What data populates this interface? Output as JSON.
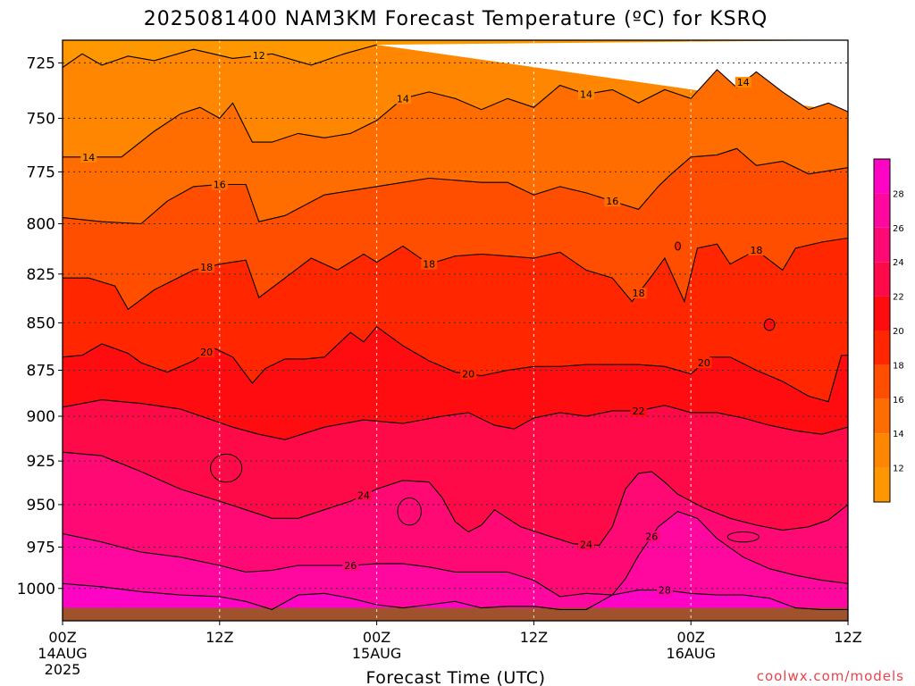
{
  "chart_data": {
    "type": "heatmap",
    "title": "2025081400 NAM3KM Forecast Temperature (ºC) for KSRQ",
    "xlabel": "Forecast Time (UTC)",
    "ylabel": "",
    "credit": "coolwx.com/models",
    "x_ticks": [
      {
        "hour": 0,
        "label": "00Z",
        "sub1": "14AUG",
        "sub2": "2025"
      },
      {
        "hour": 12,
        "label": "12Z",
        "sub1": "",
        "sub2": ""
      },
      {
        "hour": 24,
        "label": "00Z",
        "sub1": "15AUG",
        "sub2": ""
      },
      {
        "hour": 36,
        "label": "12Z",
        "sub1": "",
        "sub2": ""
      },
      {
        "hour": 48,
        "label": "00Z",
        "sub1": "16AUG",
        "sub2": ""
      },
      {
        "hour": 60,
        "label": "12Z",
        "sub1": "",
        "sub2": ""
      }
    ],
    "xlim": [
      0,
      60
    ],
    "y_ticks": [
      725,
      750,
      775,
      800,
      825,
      850,
      875,
      900,
      925,
      950,
      975,
      1000
    ],
    "ylim": [
      1020,
      715
    ],
    "y_scale": "pressure (hPa), inverted",
    "ground_level_hPa": 1012,
    "grid": true,
    "colorbar": {
      "levels": [
        12,
        14,
        16,
        18,
        20,
        22,
        24,
        26,
        28
      ],
      "colors": [
        "#ff9800",
        "#ff8600",
        "#ff6c00",
        "#ff4e00",
        "#ff2600",
        "#ff0c10",
        "#ff0a48",
        "#ff0a74",
        "#ff08a0",
        "#ff04c4"
      ]
    },
    "isotherms": [
      {
        "value": 12,
        "x": [
          0,
          1.5,
          3,
          5,
          7,
          10,
          13,
          16,
          19,
          21.5,
          24
        ],
        "p": [
          727,
          721,
          726,
          722,
          724,
          719,
          723,
          721,
          726,
          721,
          717
        ],
        "labels": [
          15
        ]
      },
      {
        "value": 14,
        "x": [
          0,
          2,
          4.5,
          7,
          9,
          10.5,
          12,
          13,
          14.5,
          16,
          18,
          20,
          22,
          24,
          26,
          28,
          30,
          32,
          34,
          36,
          38,
          40,
          42,
          44,
          46,
          48,
          50,
          51.5,
          53,
          55,
          57,
          58.5,
          60
        ],
        "p": [
          768,
          768,
          768,
          756,
          748,
          745,
          750,
          743,
          761,
          761,
          757,
          759,
          757,
          751,
          741,
          738,
          741,
          746,
          741,
          745,
          735,
          739,
          737,
          743,
          737,
          741,
          728,
          736,
          729,
          738,
          746,
          743,
          747
        ],
        "labels": [
          2,
          26,
          40,
          52
        ]
      },
      {
        "value": 16,
        "x": [
          0,
          3,
          6,
          8,
          10,
          12,
          14,
          15,
          17,
          20,
          23,
          26,
          28,
          30,
          32,
          34,
          36,
          38,
          40,
          42,
          44,
          45.5,
          46.5,
          48,
          50,
          51.5,
          53,
          55,
          57,
          60
        ],
        "p": [
          797,
          799,
          800,
          789,
          782,
          781,
          781,
          799,
          796,
          786,
          783,
          780,
          778,
          779,
          780,
          780,
          786,
          782,
          785,
          789,
          793,
          782,
          776,
          768,
          767,
          764,
          772,
          770,
          776,
          773
        ],
        "labels": [
          12,
          42
        ]
      },
      {
        "value": 18,
        "x": [
          0,
          2,
          4,
          5,
          7,
          10,
          12,
          14,
          15,
          17,
          19,
          21,
          23,
          24,
          26,
          28,
          30,
          32,
          34,
          36,
          38,
          40,
          42,
          43.5,
          45,
          46,
          47.5,
          48.5,
          50,
          51,
          53,
          55,
          56,
          58,
          60
        ],
        "p": [
          827,
          827,
          831,
          843,
          833,
          823,
          820,
          818,
          837,
          827,
          817,
          823,
          815,
          819,
          811,
          820,
          816,
          815,
          816,
          817,
          814,
          823,
          827,
          839,
          826,
          817,
          839,
          812,
          810,
          820,
          813,
          823,
          812,
          809,
          807
        ],
        "labels": [
          11,
          28,
          44,
          53
        ]
      },
      {
        "value": 20,
        "x": [
          0,
          1.5,
          3,
          5,
          6,
          8,
          10,
          11.5,
          13,
          14.5,
          15.5,
          17,
          18.5,
          20,
          22,
          23,
          24,
          26,
          28,
          30,
          32,
          34,
          36,
          38,
          40,
          42,
          44,
          46,
          48,
          49.5,
          51,
          53,
          55,
          57,
          58.5,
          59.5,
          60
        ],
        "p": [
          868,
          867,
          861,
          866,
          871,
          876,
          870,
          863,
          868,
          882,
          874,
          869,
          869,
          868,
          855,
          860,
          852,
          862,
          870,
          876,
          878,
          875,
          873,
          873,
          872,
          872,
          872,
          873,
          877,
          868,
          868,
          875,
          881,
          889,
          892,
          867,
          867
        ],
        "labels": [
          11,
          31,
          49
        ]
      },
      {
        "value": 22,
        "x": [
          0,
          3,
          6,
          9,
          11,
          13,
          15,
          17,
          20,
          23,
          26,
          29,
          31,
          33,
          34.5,
          36,
          38,
          40,
          42,
          44,
          46,
          48,
          50,
          52,
          54,
          56,
          58,
          60
        ],
        "p": [
          895,
          891,
          893,
          896,
          901,
          906,
          910,
          913,
          906,
          902,
          904,
          900,
          898,
          905,
          907,
          901,
          898,
          900,
          897,
          897,
          894,
          898,
          898,
          901,
          905,
          908,
          910,
          906
        ],
        "labels": [
          44
        ]
      },
      {
        "value": 24,
        "x": [
          0,
          3,
          6,
          9,
          12,
          14,
          16,
          18,
          20,
          22,
          24,
          26,
          28,
          29,
          30,
          31,
          32,
          33,
          34,
          35,
          37,
          39,
          41,
          42,
          43,
          44,
          45,
          46,
          47,
          49,
          51,
          53,
          55,
          57,
          58.5,
          60
        ],
        "p": [
          920,
          922,
          931,
          941,
          948,
          953,
          958,
          958,
          953,
          948,
          941,
          936,
          937,
          946,
          960,
          966,
          962,
          953,
          958,
          963,
          968,
          973,
          974,
          963,
          941,
          932,
          931,
          937,
          944,
          952,
          958,
          962,
          965,
          963,
          959,
          950
        ],
        "labels": [
          23,
          40
        ]
      },
      {
        "value": 26,
        "x": [
          0,
          3,
          6,
          9,
          12,
          14,
          16,
          18,
          20,
          22,
          24,
          26,
          28,
          30,
          32,
          34,
          36,
          38,
          40,
          42,
          43,
          44,
          45.5,
          47,
          48.5,
          50,
          52,
          54,
          56,
          58,
          60
        ],
        "p": [
          967,
          972,
          978,
          981,
          986,
          990,
          989,
          986,
          986,
          986,
          985,
          985,
          987,
          990,
          990,
          990,
          995,
          1005,
          1003,
          1004,
          994,
          980,
          963,
          954,
          958,
          970,
          981,
          988,
          992,
          995,
          997
        ],
        "labels": [
          22,
          45
        ]
      },
      {
        "value": 28,
        "x": [
          0,
          3,
          6,
          9,
          12,
          14,
          16,
          18,
          20,
          22,
          24,
          26,
          28,
          30,
          32,
          34,
          36,
          38,
          40,
          42,
          44,
          46,
          48,
          50,
          52,
          54,
          56,
          58,
          60
        ],
        "p": [
          997,
          999,
          1002,
          1004,
          1005,
          1008,
          1013,
          1004,
          1003,
          1006,
          1010,
          1012,
          1010,
          1008,
          1012,
          1011,
          1011,
          1013,
          1013,
          1004,
          1001,
          1001,
          1003,
          1004,
          1004,
          1006,
          1012,
          1013,
          1013
        ],
        "labels": [
          46
        ]
      }
    ],
    "closed_contours": [
      {
        "value": 22,
        "hour": 12.5,
        "p": 929,
        "rx": 1.2,
        "rp": 8
      },
      {
        "value": 24,
        "hour": 26.5,
        "p": 954,
        "rx": 0.9,
        "rp": 8
      },
      {
        "value": 24,
        "hour": 52,
        "p": 969,
        "rx": 1.2,
        "rp": 3
      },
      {
        "value": 20,
        "hour": 54,
        "p": 851,
        "rx": 0.4,
        "rp": 3
      },
      {
        "value": 18,
        "hour": 47,
        "p": 811,
        "rx": 0.2,
        "rp": 2
      }
    ]
  }
}
